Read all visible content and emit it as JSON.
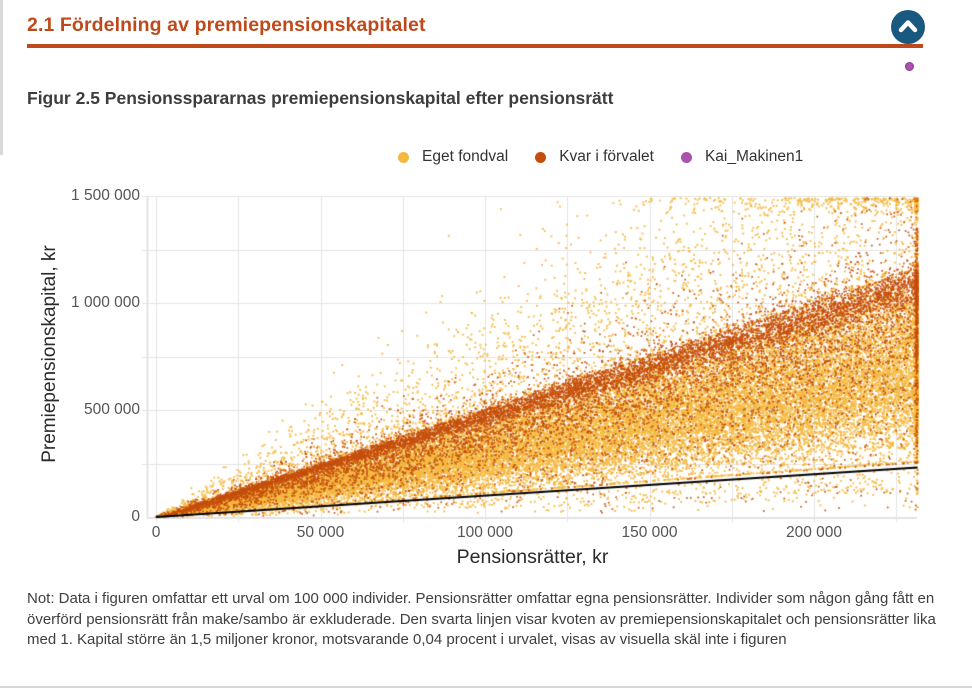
{
  "page": {
    "section_heading": "2.1 Fördelning av premiepensionskapitalet",
    "figure_title": "Figur 2.5 Pensionsspararnas premiepensionskapital efter pensionsrätt",
    "note_text": "Not: Data i figuren omfattar ett urval om 100 000 individer. Pensionsrätter omfattar egna pensionsrätter. Individer som någon gång fått en överförd pensionsrätt från make/sambo är exkluderade. Den svarta linjen visar kvoten av premiepensionskapitalet och pensionsrätter lika med 1. Kapital större än 1,5 miljoner kronor, motsvarande 0,04 procent i urvalet, visas av visuella skäl inte i figuren",
    "accent_color": "#BE4A1B",
    "scroll_top_button": {
      "icon": "chevron-up-icon",
      "background": "#19587F"
    },
    "stray_marker_color": "#A853AC"
  },
  "legend": {
    "items": [
      {
        "label": "Eget fondval",
        "color": "#F4B83F"
      },
      {
        "label": "Kvar i förvalet",
        "color": "#C54E0D"
      },
      {
        "label": "Kai_Makinen1",
        "color": "#A853AC"
      }
    ]
  },
  "chart_data": {
    "type": "scatter",
    "title": "Figur 2.5 Pensionsspararnas premiepensionskapital efter pensionsrätt",
    "xlabel": "Pensionsrätter, kr",
    "ylabel": "Premiepensionskapital, kr",
    "xlim": [
      0,
      231500
    ],
    "ylim": [
      0,
      1500000
    ],
    "x_ticks": [
      0,
      50000,
      100000,
      150000,
      200000
    ],
    "x_tick_labels": [
      "0",
      "50 000",
      "100 000",
      "150 000",
      "200 000"
    ],
    "y_ticks": [
      0,
      500000,
      1000000,
      1500000
    ],
    "y_tick_labels": [
      "0",
      "500 000",
      "1 000 000",
      "1 500 000"
    ],
    "grid": {
      "x_minor_every": 25000,
      "y_every": 250000,
      "color": "#e4e4e4"
    },
    "legend_position": "top",
    "sample_size_note": "urval om 100 000 individer",
    "y_cap": 1490000,
    "reference_line": {
      "label": "kvot premiepensionskapital/pensionsrätter = 1",
      "from": [
        0,
        0
      ],
      "to": [
        231500,
        231500
      ],
      "color": "#000000",
      "width": 2
    },
    "series": [
      {
        "name": "Eget fondval",
        "color": "#F4B83F",
        "marker_size": 1.9,
        "alpha": 0.92,
        "n_rendered": 30000,
        "x_exponent": 0.78,
        "edge_pileup_frac": 0.05,
        "components": [
          {
            "w": 0.775,
            "ratio_mean": 2.9,
            "ratio_sd": 0.85,
            "ratio_min": 1.12,
            "ratio_max": 5.0
          },
          {
            "w": 0.12,
            "ratio_mean": 4.25,
            "ratio_sd": 0.45,
            "ratio_min": 3.0,
            "ratio_max": 5.3
          },
          {
            "w": 0.087,
            "flier": true,
            "ratio_base": 5.0,
            "ratio_sd": 2.6
          },
          {
            "w": 0.018,
            "ratio_mean": 0.7,
            "ratio_sd": 0.25,
            "ratio_min": 0.2,
            "ratio_max": 1.0
          }
        ]
      },
      {
        "name": "Kvar i förvalet",
        "color": "#C54E0D",
        "marker_size": 1.7,
        "alpha": 0.95,
        "n_rendered": 13000,
        "x_exponent": 0.9,
        "edge_pileup_frac": 0.05,
        "components": [
          {
            "w": 0.48,
            "ratio_mean": 4.68,
            "ratio_sd": 0.22,
            "ratio_min": 3.8,
            "ratio_max": 5.6
          },
          {
            "w": 0.3,
            "ratio_mean": 3.9,
            "ratio_sd": 0.6,
            "ratio_min": 1.5,
            "ratio_max": 5.0
          },
          {
            "w": 0.15,
            "ratio_mean": 2.6,
            "ratio_sd": 0.9,
            "ratio_min": 1.1,
            "ratio_max": 4.3
          },
          {
            "w": 0.06,
            "flier": true,
            "ratio_base": 4.9,
            "ratio_sd": 1.1
          },
          {
            "w": 0.01,
            "ratio_mean": 0.6,
            "ratio_sd": 0.25,
            "ratio_min": 0.15,
            "ratio_max": 0.95
          }
        ]
      },
      {
        "name": "Kai_Makinen1",
        "color": "#A853AC",
        "marker_size": 3.5,
        "alpha": 1,
        "n_rendered": 0,
        "points_in_plot": 0,
        "stray_marker_outside_plot": true,
        "components": []
      }
    ]
  }
}
